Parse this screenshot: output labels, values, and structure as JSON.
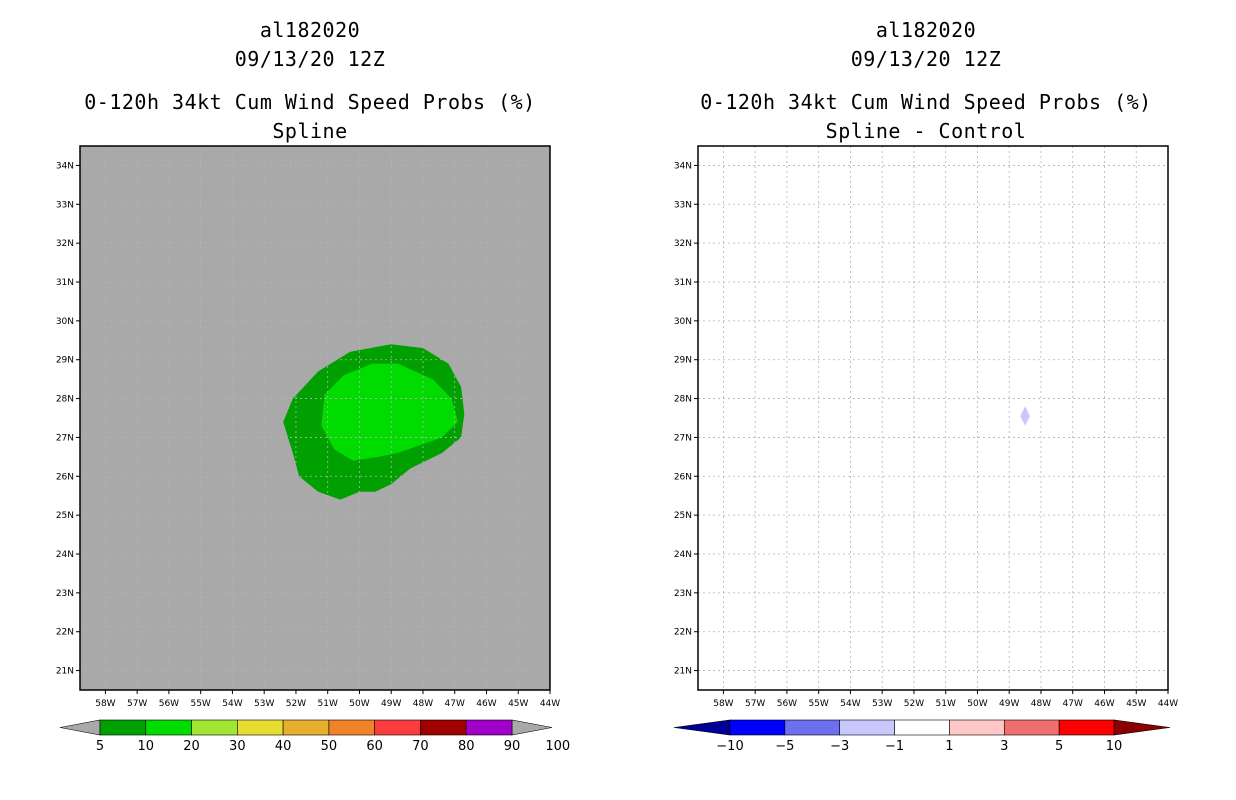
{
  "chart_data": [
    {
      "type": "heatmap",
      "storm_id": "al182020",
      "date": "09/13/20 12Z",
      "title": "0-120h 34kt Cum Wind Speed Probs (%)",
      "subtitle": "Spline",
      "background_color": "#a9a9a9",
      "grid": true,
      "xlim": [
        -58.8,
        -44
      ],
      "ylim": [
        20.5,
        34.5
      ],
      "x_ticks": [
        "58W",
        "57W",
        "56W",
        "55W",
        "54W",
        "53W",
        "52W",
        "51W",
        "50W",
        "49W",
        "48W",
        "47W",
        "46W",
        "45W",
        "44W"
      ],
      "y_ticks": [
        "21N",
        "22N",
        "23N",
        "24N",
        "25N",
        "26N",
        "27N",
        "28N",
        "29N",
        "30N",
        "31N",
        "32N",
        "33N",
        "34N"
      ],
      "contours": [
        {
          "level": "5-10",
          "color": "#00a000",
          "lonlat": [
            [
              -52.4,
              27.4
            ],
            [
              -52.1,
              28.0
            ],
            [
              -51.3,
              28.7
            ],
            [
              -50.3,
              29.2
            ],
            [
              -49.0,
              29.4
            ],
            [
              -48.0,
              29.3
            ],
            [
              -47.2,
              28.9
            ],
            [
              -46.8,
              28.3
            ],
            [
              -46.7,
              27.6
            ],
            [
              -46.8,
              27.0
            ],
            [
              -47.4,
              26.6
            ],
            [
              -48.4,
              26.2
            ],
            [
              -49.0,
              25.8
            ],
            [
              -49.5,
              25.6
            ],
            [
              -50.0,
              25.6
            ],
            [
              -50.6,
              25.4
            ],
            [
              -51.3,
              25.6
            ],
            [
              -51.9,
              26.0
            ],
            [
              -52.1,
              26.6
            ]
          ]
        },
        {
          "level": "10-20",
          "color": "#00dc00",
          "lonlat": [
            [
              -51.2,
              27.3
            ],
            [
              -51.1,
              28.1
            ],
            [
              -50.5,
              28.6
            ],
            [
              -49.6,
              28.9
            ],
            [
              -48.8,
              28.9
            ],
            [
              -47.7,
              28.5
            ],
            [
              -47.1,
              28.0
            ],
            [
              -46.9,
              27.4
            ],
            [
              -47.4,
              27.0
            ],
            [
              -48.1,
              26.8
            ],
            [
              -48.8,
              26.6
            ],
            [
              -49.4,
              26.5
            ],
            [
              -50.2,
              26.4
            ],
            [
              -50.8,
              26.7
            ]
          ]
        }
      ],
      "colorbar": {
        "labels": [
          "5",
          "10",
          "20",
          "30",
          "40",
          "50",
          "60",
          "70",
          "80",
          "90",
          "100"
        ],
        "colors": [
          "#00a000",
          "#00dc00",
          "#a0e632",
          "#e6dc32",
          "#e6af2d",
          "#f08228",
          "#fa3c3c",
          "#a00000",
          "#a000c8"
        ],
        "end_colors": [
          "#a9a9a9",
          "#a9a9a9"
        ]
      }
    },
    {
      "type": "heatmap",
      "storm_id": "al182020",
      "date": "09/13/20 12Z",
      "title": "0-120h 34kt Cum Wind Speed Probs (%)",
      "subtitle": "Spline - Control",
      "background_color": "#ffffff",
      "grid": true,
      "xlim": [
        -58.8,
        -44
      ],
      "ylim": [
        20.5,
        34.5
      ],
      "x_ticks": [
        "58W",
        "57W",
        "56W",
        "55W",
        "54W",
        "53W",
        "52W",
        "51W",
        "50W",
        "49W",
        "48W",
        "47W",
        "46W",
        "45W",
        "44W"
      ],
      "y_ticks": [
        "21N",
        "22N",
        "23N",
        "24N",
        "25N",
        "26N",
        "27N",
        "28N",
        "29N",
        "30N",
        "31N",
        "32N",
        "33N",
        "34N"
      ],
      "contours": [
        {
          "level": "-3 to -1",
          "color": "#c8c8ff",
          "lonlat": [
            [
              -48.5,
              27.8
            ],
            [
              -48.35,
              27.55
            ],
            [
              -48.5,
              27.3
            ],
            [
              -48.65,
              27.55
            ]
          ]
        }
      ],
      "colorbar": {
        "labels": [
          "−10",
          "−5",
          "−3",
          "−1",
          "1",
          "3",
          "5",
          "10"
        ],
        "colors": [
          "#0000ff",
          "#6e6ef0",
          "#c8c8ff",
          "#ffffff",
          "#ffc8c8",
          "#f06e6e",
          "#ff0000"
        ],
        "end_colors": [
          "#000096",
          "#8b0000"
        ]
      }
    }
  ]
}
